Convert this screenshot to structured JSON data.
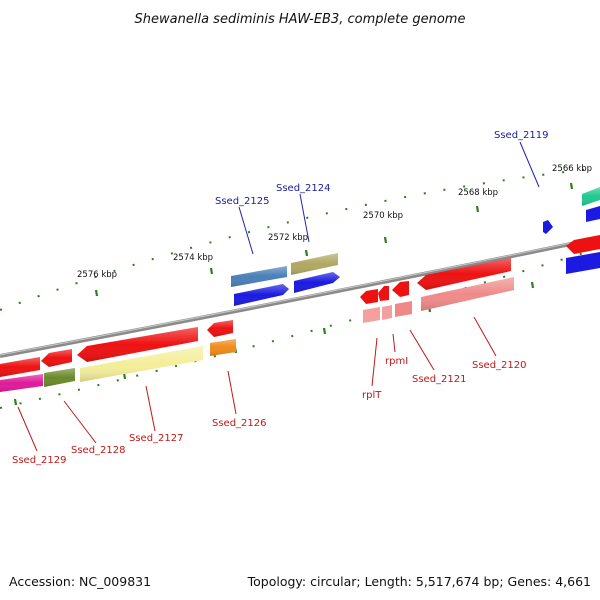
{
  "title": "Shewanella sediminis HAW-EB3, complete genome",
  "footer": {
    "accession": "Accession: NC_009831",
    "summary": "Topology: circular; Length: 5,517,674 bp; Genes: 4,661"
  },
  "colors": {
    "backbone": "#8a8a8a",
    "tick": "#2e7d1e",
    "label_forward": "#1a1aa0",
    "label_reverse": "#c01818"
  },
  "kbp_labels": [
    "2576 kbp",
    "2574 kbp",
    "2572 kbp",
    "2570 kbp",
    "2568 kbp",
    "2566 kbp"
  ],
  "gene_labels": {
    "forward": [
      "Ssed_2125",
      "Ssed_2124",
      "Ssed_2119"
    ],
    "reverse": [
      "Ssed_2129",
      "Ssed_2128",
      "Ssed_2127",
      "Ssed_2126",
      "rplT",
      "rpmI",
      "Ssed_2121",
      "Ssed_2120"
    ]
  }
}
